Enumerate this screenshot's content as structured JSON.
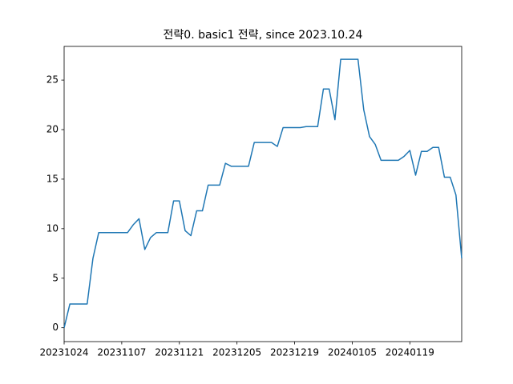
{
  "chart_data": {
    "type": "line",
    "title": "전략0. basic1 전략, since 2023.10.24",
    "categories": [
      "20231024",
      null,
      null,
      null,
      null,
      null,
      null,
      null,
      null,
      null,
      "20231107",
      null,
      null,
      null,
      null,
      null,
      null,
      null,
      null,
      null,
      "20231121",
      null,
      null,
      null,
      null,
      null,
      null,
      null,
      null,
      null,
      "20231205",
      null,
      null,
      null,
      null,
      null,
      null,
      null,
      null,
      null,
      "20231219",
      null,
      null,
      null,
      null,
      null,
      null,
      null,
      null,
      null,
      "20240105",
      null,
      null,
      null,
      null,
      null,
      null,
      null,
      null,
      null,
      "20240119",
      null,
      null,
      null,
      null,
      null,
      null,
      null,
      null,
      null
    ],
    "series": [
      {
        "color": "#1f77b4",
        "values": [
          0,
          2.4,
          2.4,
          2.4,
          2.4,
          7.0,
          9.6,
          9.6,
          9.6,
          9.6,
          9.6,
          9.6,
          10.4,
          11.0,
          7.9,
          9.1,
          9.6,
          9.6,
          9.6,
          12.8,
          12.8,
          9.8,
          9.3,
          11.8,
          11.8,
          14.4,
          14.4,
          14.4,
          16.6,
          16.3,
          16.3,
          16.3,
          16.3,
          18.7,
          18.7,
          18.7,
          18.7,
          18.3,
          20.2,
          20.2,
          20.2,
          20.2,
          20.3,
          20.3,
          20.3,
          24.1,
          24.1,
          21.0,
          27.1,
          27.1,
          27.1,
          27.1,
          22.0,
          19.3,
          18.5,
          16.9,
          16.9,
          16.9,
          16.9,
          17.3,
          17.9,
          15.4,
          17.8,
          17.8,
          18.2,
          18.2,
          15.2,
          15.2,
          13.4,
          7.0
        ]
      }
    ],
    "ylim": [
      -1.4,
      28.4
    ],
    "yticks": [
      0,
      5,
      10,
      15,
      20,
      25
    ]
  }
}
